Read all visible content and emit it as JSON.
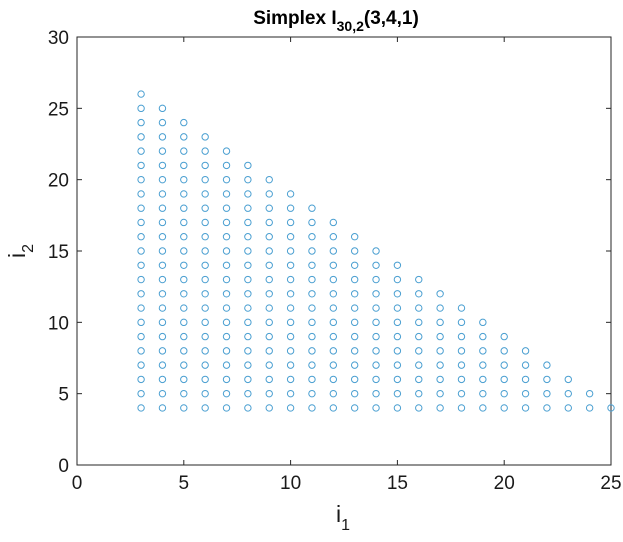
{
  "chart_data": {
    "type": "scatter",
    "title": {
      "main": "Simplex I",
      "subscript": "30,2",
      "suffix": "(3,4,1)"
    },
    "xlabel": {
      "main": "i",
      "subscript": "1"
    },
    "ylabel": {
      "main": "i",
      "subscript": "2"
    },
    "xlim": [
      0,
      25
    ],
    "ylim": [
      0,
      30
    ],
    "xticks": [
      0,
      5,
      10,
      15,
      20,
      25
    ],
    "yticks": [
      0,
      5,
      10,
      15,
      20,
      25,
      30
    ],
    "grid": false,
    "marker": "open-circle",
    "marker_color": "#4a9fd1",
    "point_rule": {
      "i1_min": 3,
      "i2_min": 4,
      "sum_max": 29
    },
    "series": [
      {
        "x": 3,
        "y": [
          4,
          5,
          6,
          7,
          8,
          9,
          10,
          11,
          12,
          13,
          14,
          15,
          16,
          17,
          18,
          19,
          20,
          21,
          22,
          23,
          24,
          25,
          26
        ]
      },
      {
        "x": 4,
        "y": [
          4,
          5,
          6,
          7,
          8,
          9,
          10,
          11,
          12,
          13,
          14,
          15,
          16,
          17,
          18,
          19,
          20,
          21,
          22,
          23,
          24,
          25
        ]
      },
      {
        "x": 5,
        "y": [
          4,
          5,
          6,
          7,
          8,
          9,
          10,
          11,
          12,
          13,
          14,
          15,
          16,
          17,
          18,
          19,
          20,
          21,
          22,
          23,
          24
        ]
      },
      {
        "x": 6,
        "y": [
          4,
          5,
          6,
          7,
          8,
          9,
          10,
          11,
          12,
          13,
          14,
          15,
          16,
          17,
          18,
          19,
          20,
          21,
          22,
          23
        ]
      },
      {
        "x": 7,
        "y": [
          4,
          5,
          6,
          7,
          8,
          9,
          10,
          11,
          12,
          13,
          14,
          15,
          16,
          17,
          18,
          19,
          20,
          21,
          22
        ]
      },
      {
        "x": 8,
        "y": [
          4,
          5,
          6,
          7,
          8,
          9,
          10,
          11,
          12,
          13,
          14,
          15,
          16,
          17,
          18,
          19,
          20,
          21
        ]
      },
      {
        "x": 9,
        "y": [
          4,
          5,
          6,
          7,
          8,
          9,
          10,
          11,
          12,
          13,
          14,
          15,
          16,
          17,
          18,
          19,
          20
        ]
      },
      {
        "x": 10,
        "y": [
          4,
          5,
          6,
          7,
          8,
          9,
          10,
          11,
          12,
          13,
          14,
          15,
          16,
          17,
          18,
          19
        ]
      },
      {
        "x": 11,
        "y": [
          4,
          5,
          6,
          7,
          8,
          9,
          10,
          11,
          12,
          13,
          14,
          15,
          16,
          17,
          18
        ]
      },
      {
        "x": 12,
        "y": [
          4,
          5,
          6,
          7,
          8,
          9,
          10,
          11,
          12,
          13,
          14,
          15,
          16,
          17
        ]
      },
      {
        "x": 13,
        "y": [
          4,
          5,
          6,
          7,
          8,
          9,
          10,
          11,
          12,
          13,
          14,
          15,
          16
        ]
      },
      {
        "x": 14,
        "y": [
          4,
          5,
          6,
          7,
          8,
          9,
          10,
          11,
          12,
          13,
          14,
          15
        ]
      },
      {
        "x": 15,
        "y": [
          4,
          5,
          6,
          7,
          8,
          9,
          10,
          11,
          12,
          13,
          14
        ]
      },
      {
        "x": 16,
        "y": [
          4,
          5,
          6,
          7,
          8,
          9,
          10,
          11,
          12,
          13
        ]
      },
      {
        "x": 17,
        "y": [
          4,
          5,
          6,
          7,
          8,
          9,
          10,
          11,
          12
        ]
      },
      {
        "x": 18,
        "y": [
          4,
          5,
          6,
          7,
          8,
          9,
          10,
          11
        ]
      },
      {
        "x": 19,
        "y": [
          4,
          5,
          6,
          7,
          8,
          9,
          10
        ]
      },
      {
        "x": 20,
        "y": [
          4,
          5,
          6,
          7,
          8,
          9
        ]
      },
      {
        "x": 21,
        "y": [
          4,
          5,
          6,
          7,
          8
        ]
      },
      {
        "x": 22,
        "y": [
          4,
          5,
          6,
          7
        ]
      },
      {
        "x": 23,
        "y": [
          4,
          5,
          6
        ]
      },
      {
        "x": 24,
        "y": [
          4,
          5
        ]
      },
      {
        "x": 25,
        "y": [
          4
        ]
      }
    ]
  }
}
